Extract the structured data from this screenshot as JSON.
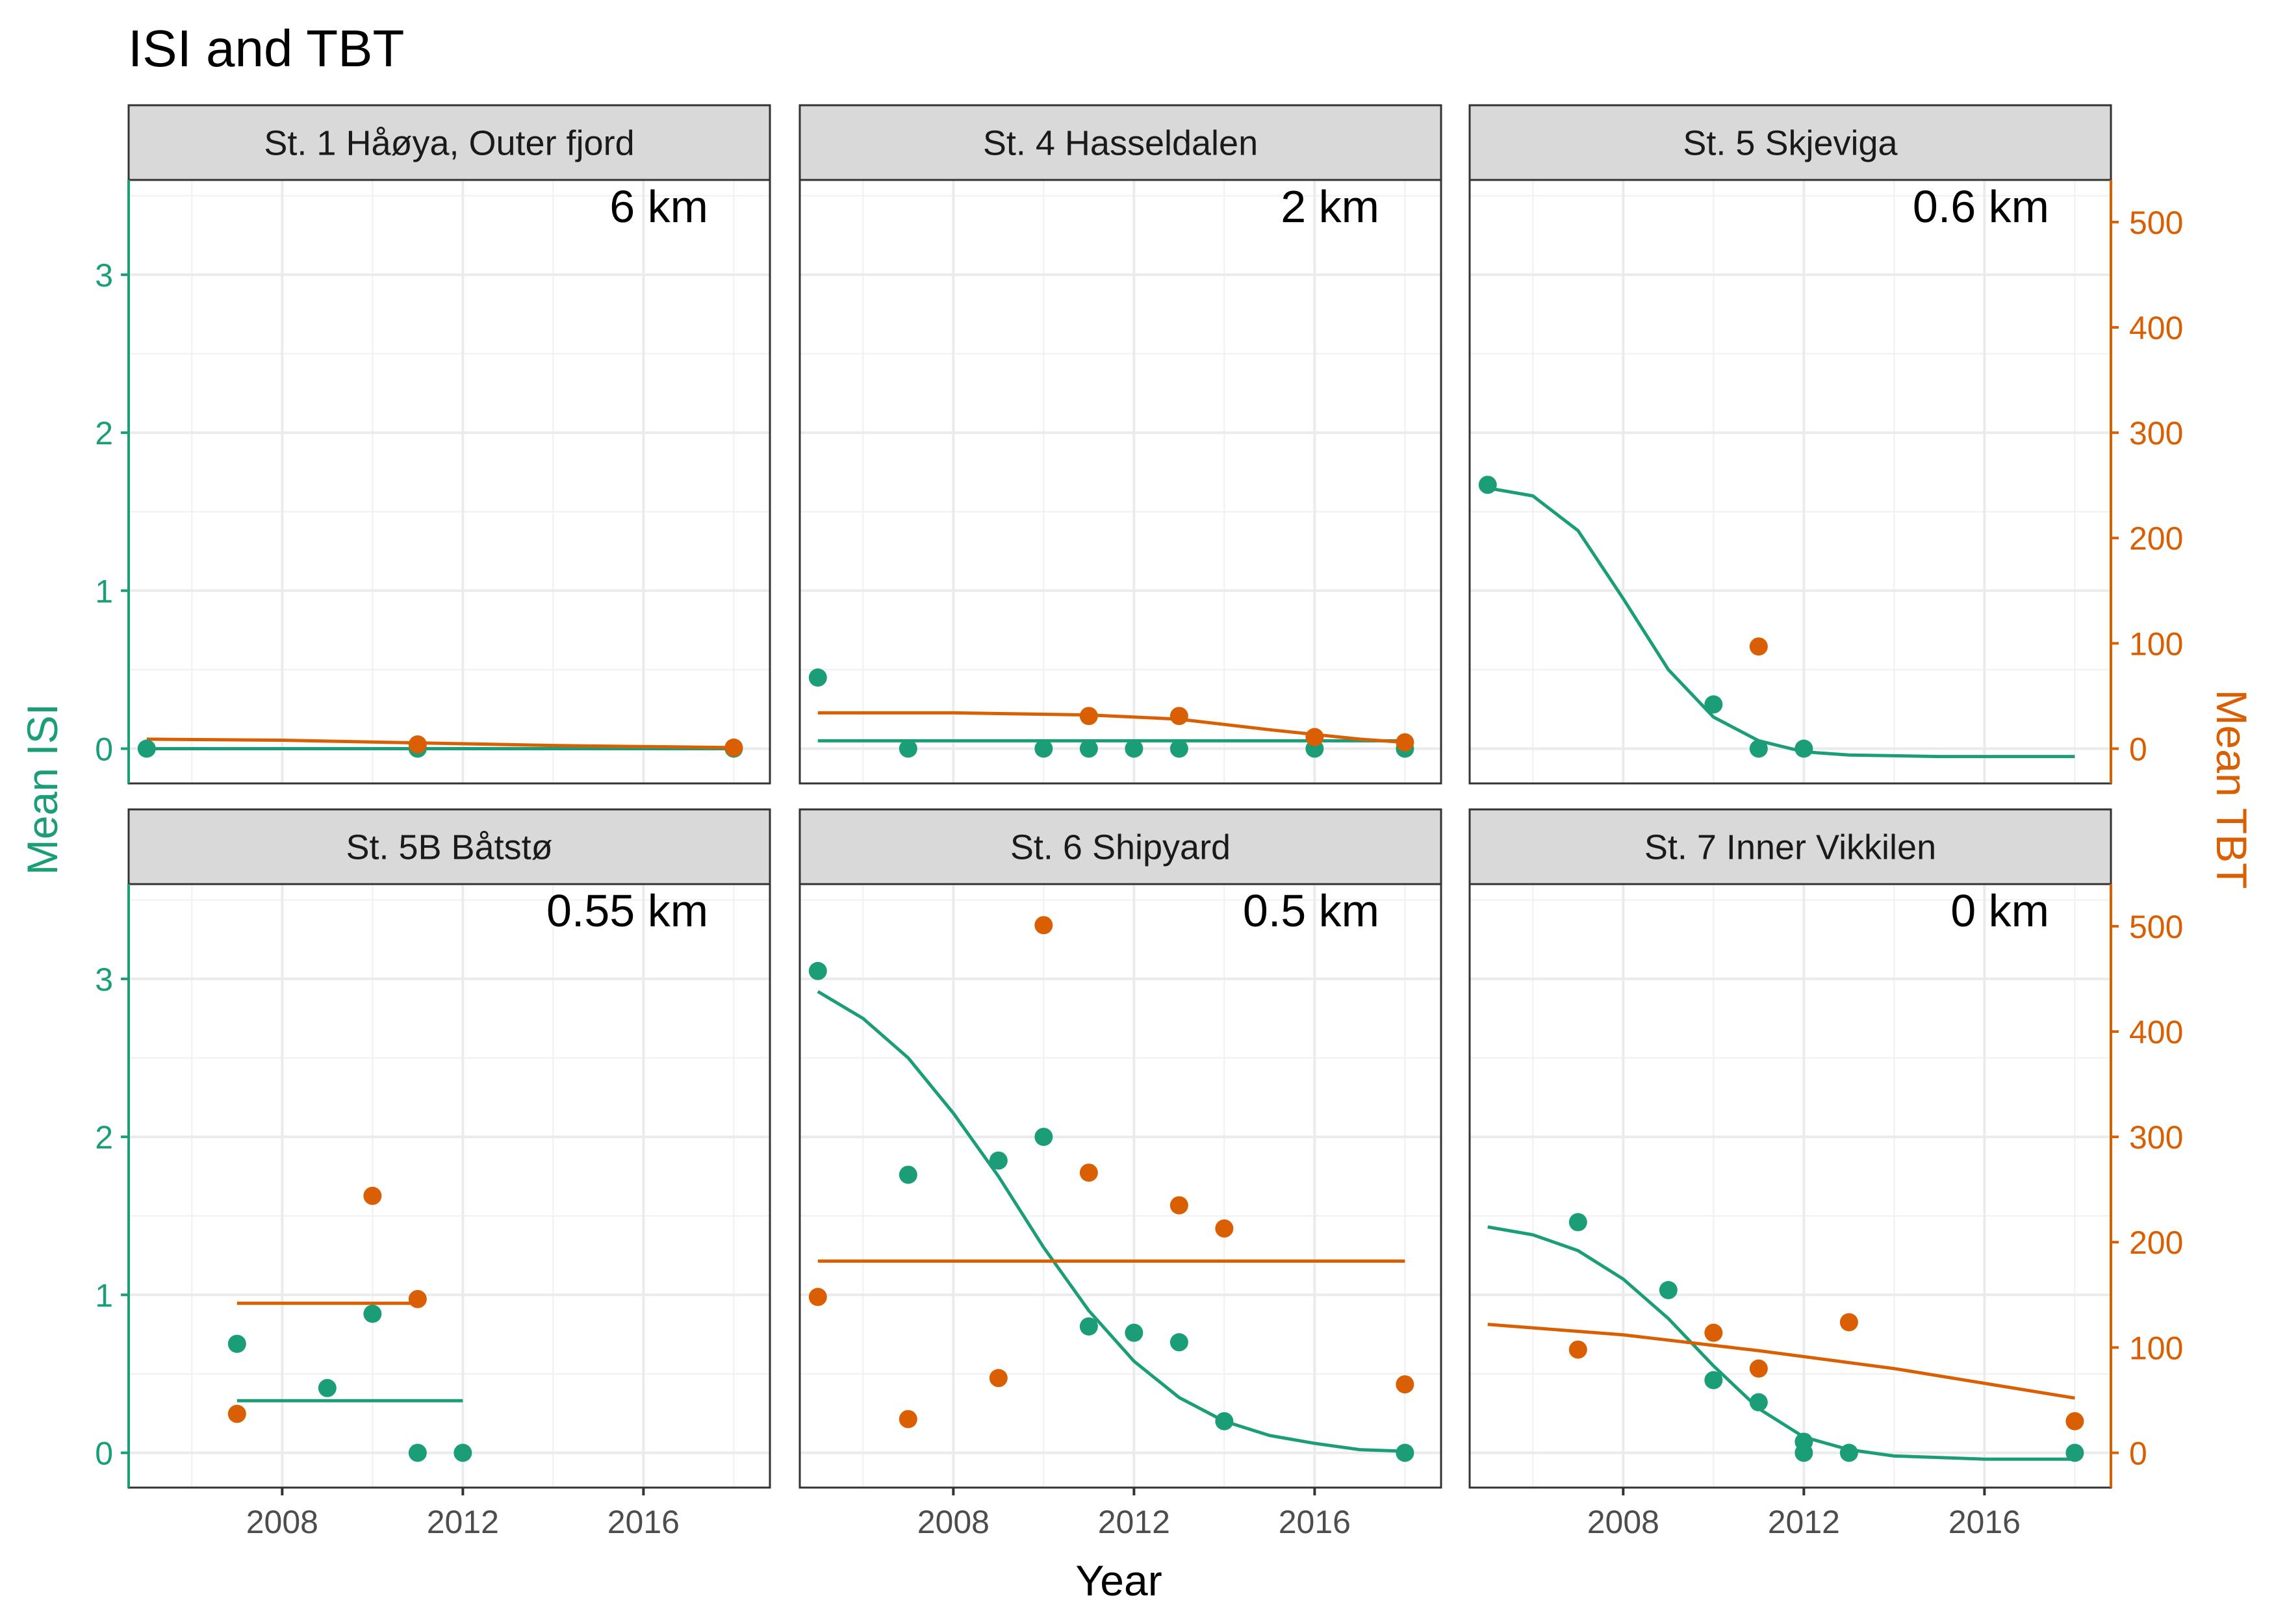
{
  "chart_data": {
    "type": "scatter",
    "title": "ISI and TBT",
    "xlabel": "Year",
    "ylabel_left": "Mean ISI",
    "ylabel_right": "Mean TBT",
    "xlim": [
      2004.6,
      2018.8
    ],
    "xticks": [
      2008,
      2012,
      2016
    ],
    "ylim_left": [
      -0.22,
      3.6
    ],
    "yticks_left": [
      0,
      1,
      2,
      3
    ],
    "ylim_right": [
      -33,
      540
    ],
    "yticks_right": [
      0,
      100,
      200,
      300,
      400,
      500
    ],
    "grid": true,
    "colors": {
      "isi": "#1b9e77",
      "tbt": "#d95f02"
    },
    "panels": [
      {
        "label": "St. 1 Håøya, Outer fjord",
        "distance": "6 km",
        "isi_points": [
          [
            2005,
            0
          ],
          [
            2011,
            0
          ],
          [
            2018,
            0
          ]
        ],
        "tbt_points": [
          [
            2011,
            4
          ],
          [
            2018,
            1
          ]
        ],
        "isi_fit": [
          [
            2005,
            0
          ],
          [
            2018,
            0
          ]
        ],
        "tbt_fit": [
          [
            2005,
            9
          ],
          [
            2008,
            8
          ],
          [
            2011,
            5.5
          ],
          [
            2014,
            3
          ],
          [
            2018,
            1
          ]
        ]
      },
      {
        "label": "St. 4 Hasseldalen",
        "distance": "2 km",
        "isi_points": [
          [
            2005,
            0.45
          ],
          [
            2007,
            0
          ],
          [
            2010,
            0
          ],
          [
            2011,
            0
          ],
          [
            2012,
            0
          ],
          [
            2013,
            0
          ],
          [
            2016,
            0
          ],
          [
            2018,
            0
          ]
        ],
        "tbt_points": [
          [
            2011,
            31
          ],
          [
            2013,
            31
          ],
          [
            2016,
            11
          ],
          [
            2018,
            6
          ]
        ],
        "isi_fit": [
          [
            2005,
            0.05
          ],
          [
            2018,
            0.05
          ]
        ],
        "tbt_fit": [
          [
            2005,
            34
          ],
          [
            2008,
            34
          ],
          [
            2011,
            32
          ],
          [
            2013,
            28
          ],
          [
            2015,
            18
          ],
          [
            2017,
            9
          ],
          [
            2018,
            6
          ]
        ]
      },
      {
        "label": "St. 5 Skjeviga",
        "distance": "0.6 km",
        "isi_points": [
          [
            2005,
            1.67
          ],
          [
            2010,
            0.28
          ],
          [
            2011,
            0
          ],
          [
            2012,
            0
          ]
        ],
        "tbt_points": [
          [
            2011,
            97
          ]
        ],
        "isi_fit": [
          [
            2005,
            1.65
          ],
          [
            2006,
            1.6
          ],
          [
            2007,
            1.38
          ],
          [
            2008,
            0.95
          ],
          [
            2009,
            0.5
          ],
          [
            2010,
            0.2
          ],
          [
            2011,
            0.05
          ],
          [
            2012,
            -0.02
          ],
          [
            2013,
            -0.04
          ],
          [
            2015,
            -0.05
          ],
          [
            2018,
            -0.05
          ]
        ],
        "tbt_fit": []
      },
      {
        "label": "St. 5B Båtstø",
        "distance": "0.55 km",
        "isi_points": [
          [
            2007,
            0.69
          ],
          [
            2009,
            0.41
          ],
          [
            2010,
            0.88
          ],
          [
            2011,
            0
          ],
          [
            2012,
            0
          ]
        ],
        "tbt_points": [
          [
            2007,
            37
          ],
          [
            2010,
            244
          ],
          [
            2011,
            146
          ]
        ],
        "isi_fit": [
          [
            2007,
            0.33
          ],
          [
            2012,
            0.33
          ]
        ],
        "tbt_fit": [
          [
            2007,
            142
          ],
          [
            2011,
            142
          ]
        ]
      },
      {
        "label": "St. 6 Shipyard",
        "distance": "0.5 km",
        "isi_points": [
          [
            2005,
            3.05
          ],
          [
            2007,
            1.76
          ],
          [
            2009,
            1.85
          ],
          [
            2010,
            2.0
          ],
          [
            2011,
            0.8
          ],
          [
            2012,
            0.76
          ],
          [
            2013,
            0.7
          ],
          [
            2014,
            0.2
          ],
          [
            2018,
            0
          ]
        ],
        "tbt_points": [
          [
            2005,
            148
          ],
          [
            2007,
            32
          ],
          [
            2009,
            71
          ],
          [
            2010,
            501
          ],
          [
            2011,
            266
          ],
          [
            2013,
            235
          ],
          [
            2014,
            213
          ],
          [
            2018,
            65
          ]
        ],
        "isi_fit": [
          [
            2005,
            2.92
          ],
          [
            2006,
            2.75
          ],
          [
            2007,
            2.5
          ],
          [
            2008,
            2.15
          ],
          [
            2009,
            1.75
          ],
          [
            2010,
            1.3
          ],
          [
            2011,
            0.9
          ],
          [
            2012,
            0.58
          ],
          [
            2013,
            0.35
          ],
          [
            2014,
            0.2
          ],
          [
            2015,
            0.11
          ],
          [
            2016,
            0.06
          ],
          [
            2017,
            0.02
          ],
          [
            2018,
            0.01
          ]
        ],
        "tbt_fit": [
          [
            2005,
            182
          ],
          [
            2018,
            182
          ]
        ]
      },
      {
        "label": "St. 7 Inner Vikkilen",
        "distance": "0 km",
        "isi_points": [
          [
            2007,
            1.46
          ],
          [
            2009,
            1.03
          ],
          [
            2010,
            0.46
          ],
          [
            2011,
            0.32
          ],
          [
            2012,
            0.07
          ],
          [
            2012,
            0
          ],
          [
            2013,
            0
          ],
          [
            2018,
            0
          ]
        ],
        "tbt_points": [
          [
            2007,
            98
          ],
          [
            2010,
            114
          ],
          [
            2011,
            80
          ],
          [
            2013,
            124
          ],
          [
            2018,
            30
          ]
        ],
        "isi_fit": [
          [
            2005,
            1.43
          ],
          [
            2006,
            1.38
          ],
          [
            2007,
            1.28
          ],
          [
            2008,
            1.1
          ],
          [
            2009,
            0.85
          ],
          [
            2010,
            0.55
          ],
          [
            2011,
            0.28
          ],
          [
            2012,
            0.1
          ],
          [
            2013,
            0.02
          ],
          [
            2014,
            -0.02
          ],
          [
            2016,
            -0.04
          ],
          [
            2018,
            -0.04
          ]
        ],
        "tbt_fit": [
          [
            2005,
            122
          ],
          [
            2008,
            112
          ],
          [
            2011,
            97
          ],
          [
            2014,
            80
          ],
          [
            2018,
            52
          ]
        ]
      }
    ]
  }
}
